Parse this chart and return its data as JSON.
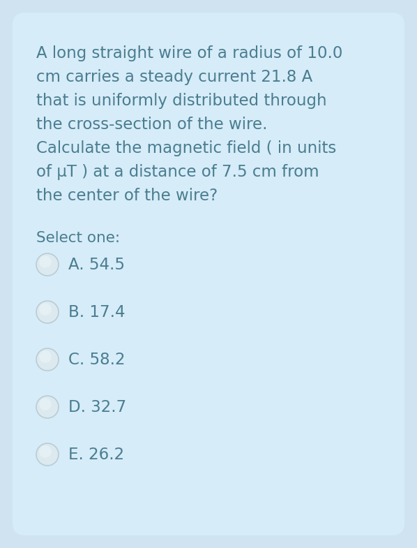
{
  "background_color": "#cfe4f0",
  "card_color": "#d6ecf8",
  "question_text_lines": [
    "A long straight wire of a radius of 10.0",
    "cm carries a steady current 21.8 A",
    "that is uniformly distributed through",
    "the cross-section of the wire.",
    "Calculate the magnetic field ( in units",
    "of μT ) at a distance of 7.5 cm from",
    "the center of the wire?"
  ],
  "select_label": "Select one:",
  "options": [
    "A. 54.5",
    "B. 17.4",
    "C. 58.2",
    "D. 32.7",
    "E. 26.2"
  ],
  "text_color": "#4a7d90",
  "question_fontsize": 16.5,
  "option_fontsize": 16.5,
  "select_fontsize": 15.5,
  "radio_fill_color": "#dce9ef",
  "radio_edge_color": "#b8cdd6",
  "radio_highlight_color": "#eaf3f8"
}
